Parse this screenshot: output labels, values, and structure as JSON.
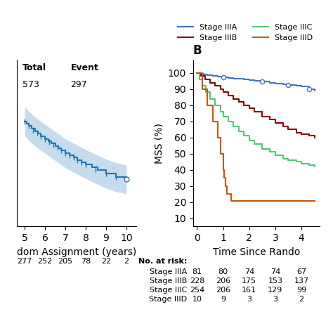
{
  "chart_data": [
    {
      "type": "line",
      "line_style": "step",
      "xlabel": "dom Assignment (years)",
      "xlim": [
        4.6,
        10.5
      ],
      "xticks": [
        5,
        6,
        7,
        8,
        9,
        10
      ],
      "ylim": [
        55,
        78
      ],
      "tick_labels": "x",
      "x": [
        5.0,
        5.1,
        5.2,
        5.35,
        5.5,
        5.65,
        5.8,
        6.0,
        6.15,
        6.3,
        6.5,
        6.65,
        6.8,
        7.0,
        7.2,
        7.4,
        7.6,
        7.8,
        8.0,
        8.3,
        8.6,
        9.0,
        9.5,
        10.0
      ],
      "values": [
        69.5,
        69.2,
        68.9,
        68.5,
        68.1,
        67.8,
        67.5,
        67.1,
        66.8,
        66.5,
        66.1,
        65.8,
        65.5,
        65.1,
        64.8,
        64.5,
        64.2,
        63.9,
        63.6,
        63.2,
        62.8,
        62.3,
        61.8,
        61.5
      ],
      "ci_upper": [
        71.5,
        71.2,
        70.9,
        70.5,
        70.1,
        69.8,
        69.5,
        69.1,
        68.8,
        68.5,
        68.1,
        67.8,
        67.5,
        67.1,
        66.8,
        66.5,
        66.2,
        65.9,
        65.6,
        65.2,
        64.8,
        64.3,
        63.8,
        63.5
      ],
      "ci_lower": [
        67.5,
        67.2,
        66.9,
        66.5,
        66.1,
        65.8,
        65.5,
        65.1,
        64.8,
        64.5,
        64.1,
        63.8,
        63.5,
        63.1,
        62.8,
        62.5,
        62.2,
        61.9,
        61.6,
        61.2,
        60.8,
        60.3,
        59.8,
        59.5
      ],
      "censored": {
        "marker": "vline",
        "x": [
          5.0,
          5.2,
          5.4,
          5.6,
          5.8,
          6.0,
          6.2,
          6.4,
          6.6,
          6.8,
          7.0,
          7.2,
          7.4,
          7.6,
          7.8,
          8.0,
          8.5,
          9.0,
          9.5
        ],
        "values": [
          69.5,
          68.9,
          68.36666666666667,
          67.9,
          67.5,
          67.1,
          66.7,
          66.3,
          65.9,
          65.5,
          65.1,
          64.8,
          64.5,
          64.2,
          63.9,
          63.6,
          62.93333333333333,
          62.3,
          61.8
        ]
      },
      "table": {
        "columns": [
          "Total",
          "Event"
        ],
        "values": [
          "573",
          "297"
        ]
      },
      "at_risk": [
        277,
        252,
        205,
        78,
        22,
        2
      ]
    },
    {
      "type": "line",
      "line_style": "step",
      "title": "B",
      "xlabel": "Time Since Rando",
      "ylabel": "MSS (%)",
      "xlim": [
        -0.15,
        4.7
      ],
      "xticks": [
        0,
        1,
        2,
        3,
        4
      ],
      "ylim": [
        5,
        108
      ],
      "yticks": [
        10,
        20,
        30,
        40,
        50,
        60,
        70,
        80,
        90,
        100
      ],
      "legend": "upper right",
      "series": [
        {
          "name": "Stage IIIA",
          "color": "#4472C4",
          "x": [
            0,
            0.08,
            0.15,
            0.25,
            0.4,
            0.6,
            0.8,
            1.0,
            1.2,
            1.4,
            1.6,
            1.8,
            2.0,
            2.2,
            2.5,
            2.8,
            3.0,
            3.3,
            3.5,
            3.8,
            4.0,
            4.3,
            4.5
          ],
          "values": [
            100,
            100,
            99.5,
            99,
            98.5,
            98,
            97.5,
            97.2,
            96.8,
            96.5,
            96.2,
            95.8,
            95.5,
            95,
            94.5,
            94,
            93.5,
            93,
            92.5,
            92,
            91.5,
            90,
            89
          ],
          "censored": {
            "marker": "circle",
            "x": [
              1.0,
              2.5,
              3.5,
              4.3
            ],
            "values": [
              97.2,
              94.5,
              92.5,
              90
            ]
          }
        },
        {
          "name": "Stage IIIB",
          "color": "#8B0000",
          "x": [
            0,
            0.15,
            0.3,
            0.5,
            0.7,
            0.9,
            1.0,
            1.2,
            1.4,
            1.6,
            1.8,
            2.0,
            2.2,
            2.5,
            2.8,
            3.0,
            3.3,
            3.5,
            3.8,
            4.0,
            4.3,
            4.5
          ],
          "values": [
            100,
            98,
            96,
            94,
            92,
            90,
            88,
            86,
            84,
            82,
            80,
            78,
            76,
            73,
            71,
            69,
            67,
            65,
            63,
            62,
            61,
            60
          ]
        },
        {
          "name": "Stage IIIC",
          "color": "#50C878",
          "x": [
            0,
            0.1,
            0.2,
            0.35,
            0.5,
            0.7,
            0.9,
            1.0,
            1.2,
            1.4,
            1.6,
            1.8,
            2.0,
            2.2,
            2.5,
            2.8,
            3.0,
            3.3,
            3.5,
            3.8,
            4.0,
            4.3,
            4.5
          ],
          "values": [
            100,
            96,
            92,
            88,
            84,
            80,
            76,
            73,
            70,
            67,
            64,
            61,
            58,
            56,
            53,
            51,
            49,
            47,
            46,
            45,
            44,
            43,
            42
          ]
        },
        {
          "name": "Stage IIID",
          "color": "#CC5500",
          "x": [
            0,
            0.2,
            0.4,
            0.6,
            0.8,
            0.9,
            1.0,
            1.05,
            1.1,
            1.15,
            1.3,
            1.5,
            2.0,
            2.5,
            3.0,
            3.5,
            4.0,
            4.5
          ],
          "values": [
            100,
            90,
            80,
            70,
            60,
            50,
            40,
            35,
            30,
            25,
            21,
            21,
            21,
            21,
            21,
            21,
            21,
            21
          ]
        }
      ],
      "at_risk_title": "No. at risk:",
      "at_risk": [
        {
          "name": "Stage IIIA",
          "values": [
            81,
            80,
            74,
            74,
            67
          ]
        },
        {
          "name": "Stage IIIB",
          "values": [
            228,
            206,
            175,
            153,
            137
          ]
        },
        {
          "name": "Stage IIIC",
          "values": [
            254,
            206,
            161,
            129,
            99
          ]
        },
        {
          "name": "Stage IIID",
          "values": [
            10,
            9,
            3,
            3,
            2
          ]
        }
      ]
    }
  ]
}
